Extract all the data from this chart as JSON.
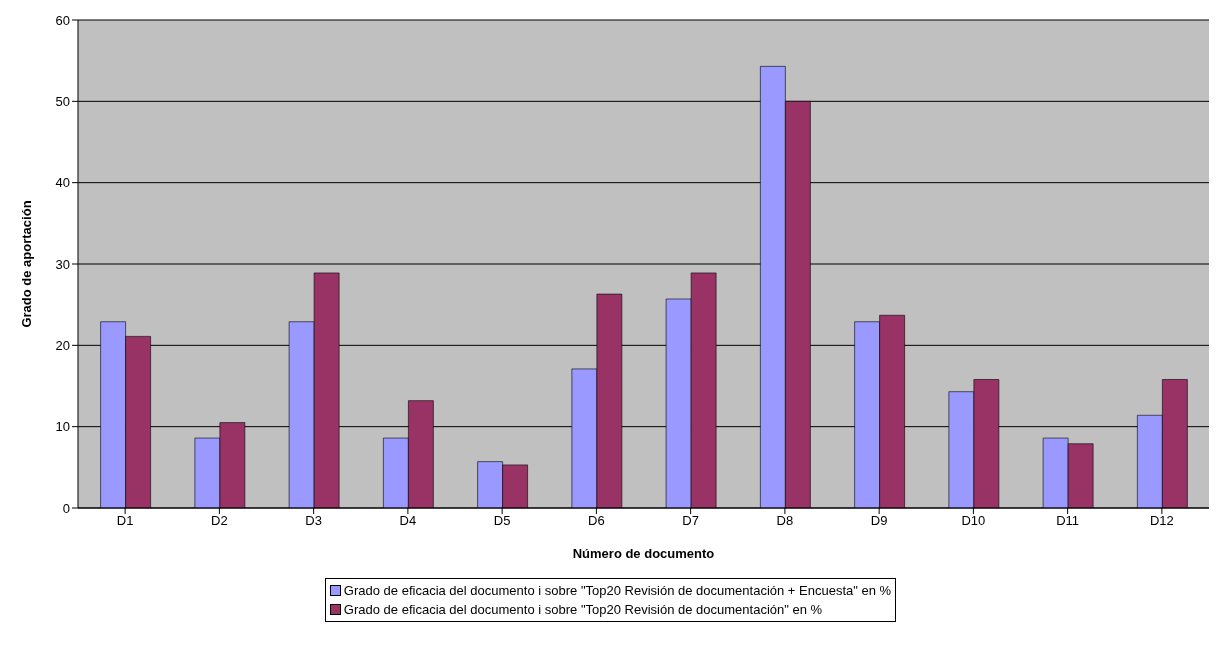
{
  "chart_data": {
    "type": "bar",
    "xlabel": "Número de documento",
    "ylabel": "Grado de aportación",
    "categories": [
      "D1",
      "D2",
      "D3",
      "D4",
      "D5",
      "D6",
      "D7",
      "D8",
      "D9",
      "D10",
      "D11",
      "D12"
    ],
    "series": [
      {
        "name": "Grado de eficacia del documento i sobre \"Top20 Revisión de documentación + Encuesta\" en %",
        "color": "#9999ff",
        "values": [
          22.9,
          8.6,
          22.9,
          8.6,
          5.7,
          17.1,
          25.7,
          54.3,
          22.9,
          14.3,
          8.6,
          11.4
        ]
      },
      {
        "name": "Grado de eficacia del documento i sobre \"Top20 Revisión de documentación\" en %",
        "color": "#993366",
        "values": [
          21.1,
          10.5,
          28.9,
          13.2,
          5.3,
          26.3,
          28.9,
          50,
          23.7,
          15.8,
          7.9,
          15.8
        ]
      }
    ],
    "ylim": [
      0,
      60
    ],
    "yticks": [
      0,
      10,
      20,
      30,
      40,
      50,
      60
    ],
    "grid": "y",
    "legend": "bottom"
  }
}
